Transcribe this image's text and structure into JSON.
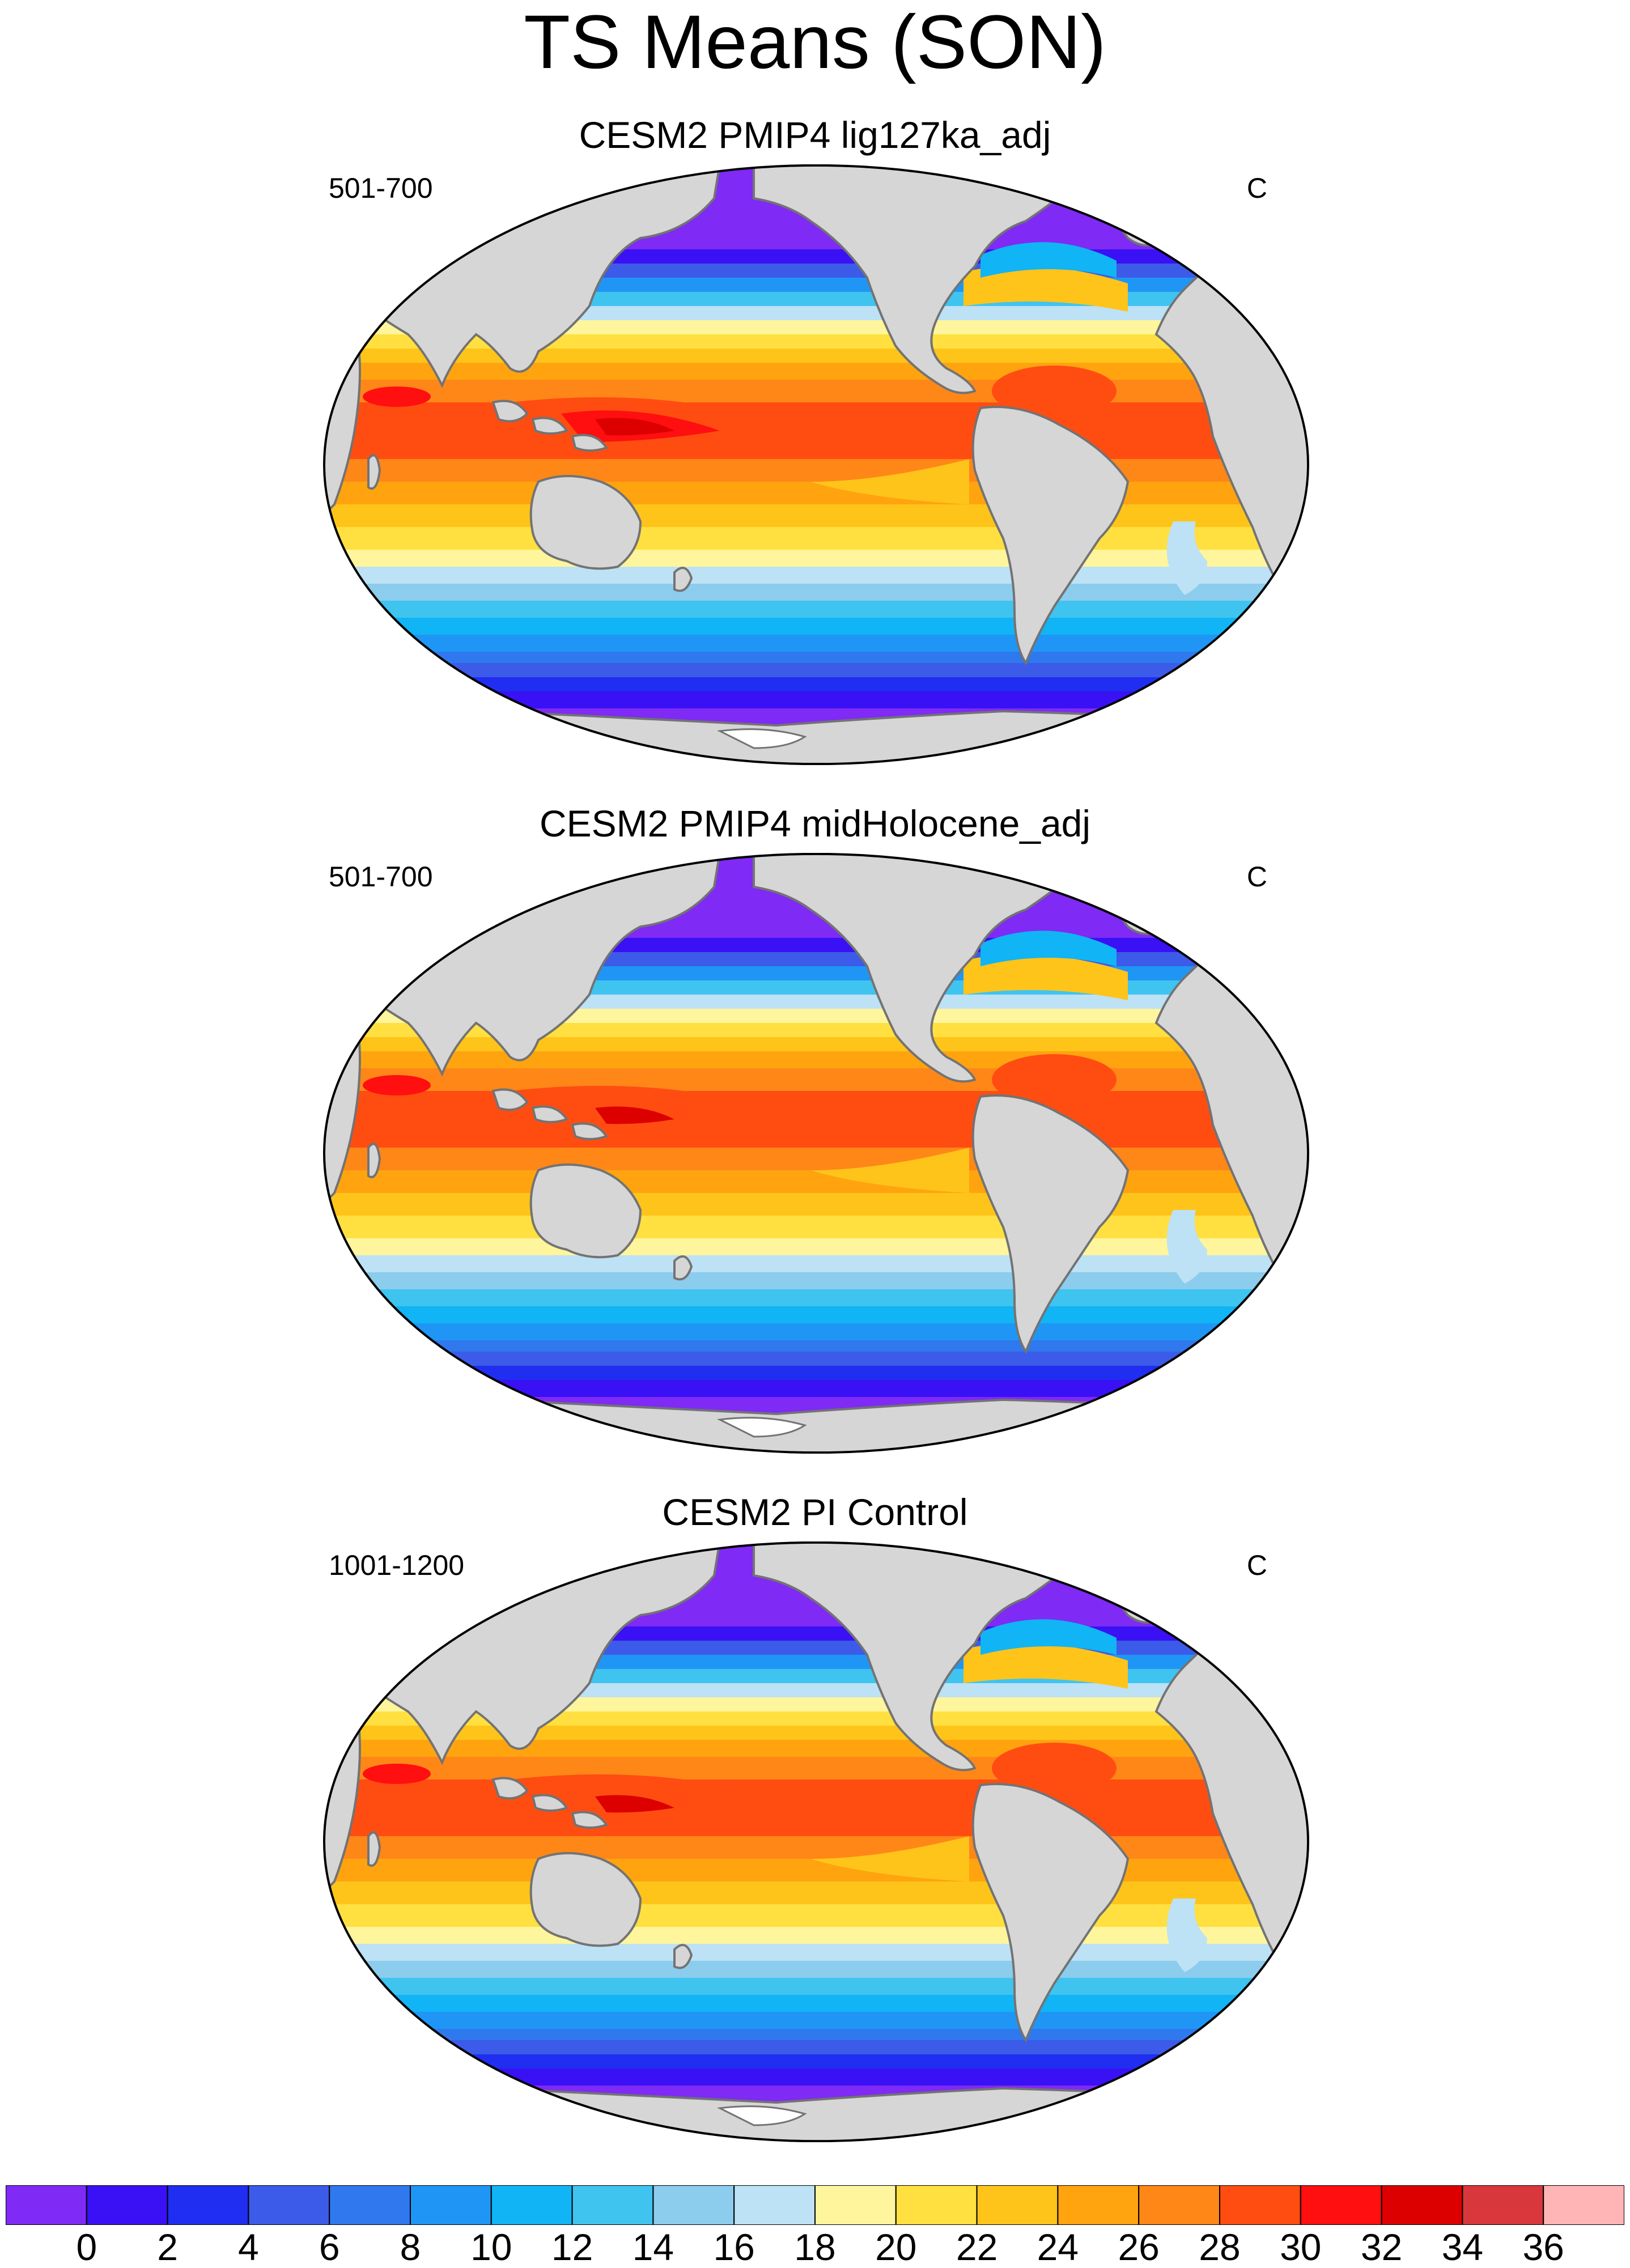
{
  "title": "TS Means (SON)",
  "panels": [
    {
      "title": "CESM2 PMIP4 lig127ka_adj",
      "period": "501-700",
      "units": "C"
    },
    {
      "title": "CESM2 PMIP4 midHolocene_adj",
      "period": "501-700",
      "units": "C"
    },
    {
      "title": "CESM2 PI Control",
      "period": "1001-1200",
      "units": "C"
    }
  ],
  "colorbar": {
    "labels": [
      "0",
      "2",
      "4",
      "6",
      "8",
      "10",
      "12",
      "14",
      "16",
      "18",
      "20",
      "22",
      "24",
      "26",
      "28",
      "30",
      "32",
      "34",
      "36"
    ],
    "colors": [
      "#7f2af5",
      "#3a10f5",
      "#1f2ef0",
      "#3c5be8",
      "#2f78ee",
      "#1f96f5",
      "#11b4f5",
      "#3fc4f0",
      "#8ccced",
      "#bde1f5",
      "#fff59c",
      "#ffe040",
      "#ffc41a",
      "#ffa40f",
      "#ff8718",
      "#ff4d12",
      "#ff0f0f",
      "#dd0000",
      "#d8383c",
      "#ffb5b5"
    ],
    "color_names": [
      "purple",
      "violet-blue",
      "blue",
      "royal-blue",
      "mid-blue",
      "azure",
      "sky-blue",
      "light-sky",
      "pale-blue",
      "very-pale-blue",
      "pale-yellow",
      "yellow",
      "gold",
      "amber",
      "orange",
      "red-orange",
      "red",
      "dark-red",
      "brick-red",
      "pink"
    ]
  },
  "colors": {
    "land": "#d6d6d6",
    "coast": "#737373",
    "ice": "#ffffff",
    "outline": "#000000"
  }
}
